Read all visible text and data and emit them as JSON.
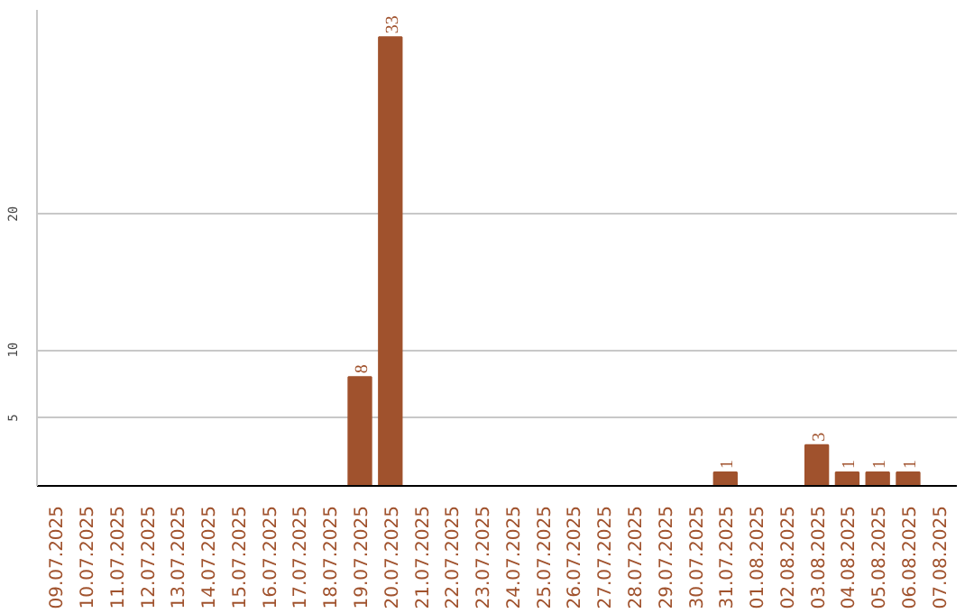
{
  "chart_data": {
    "type": "bar",
    "categories": [
      "09.07.2025",
      "10.07.2025",
      "11.07.2025",
      "12.07.2025",
      "13.07.2025",
      "14.07.2025",
      "15.07.2025",
      "16.07.2025",
      "17.07.2025",
      "18.07.2025",
      "19.07.2025",
      "20.07.2025",
      "21.07.2025",
      "22.07.2025",
      "23.07.2025",
      "24.07.2025",
      "25.07.2025",
      "26.07.2025",
      "27.07.2025",
      "28.07.2025",
      "29.07.2025",
      "30.07.2025",
      "31.07.2025",
      "01.08.2025",
      "02.08.2025",
      "03.08.2025",
      "04.08.2025",
      "05.08.2025",
      "06.08.2025",
      "07.08.2025"
    ],
    "values": [
      0,
      0,
      0,
      0,
      0,
      0,
      0,
      0,
      0,
      0,
      8,
      33,
      0,
      0,
      0,
      0,
      0,
      0,
      0,
      0,
      0,
      0,
      1,
      0,
      0,
      3,
      1,
      1,
      1,
      0
    ],
    "value_labels": [
      null,
      null,
      null,
      null,
      null,
      null,
      null,
      null,
      null,
      null,
      "8",
      "33",
      null,
      null,
      null,
      null,
      null,
      null,
      null,
      null,
      null,
      null,
      "1",
      null,
      null,
      "3",
      "1",
      "1",
      "1",
      null
    ],
    "color": "#a0522d",
    "ylim": [
      0,
      35
    ],
    "yticks": [
      5,
      10,
      20
    ],
    "grid": "y"
  }
}
